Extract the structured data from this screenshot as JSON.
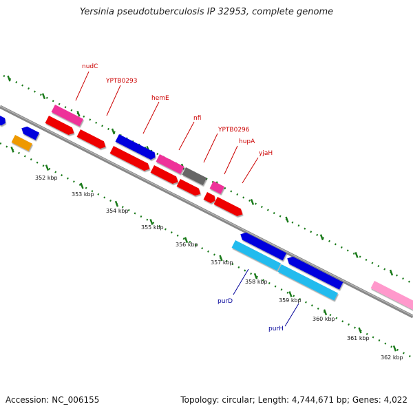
{
  "title": "Yersinia pseudotuberculosis IP 32953, complete genome",
  "footer": {
    "accession": "Accession: NC_006155",
    "summary": "Topology: circular; Length: 4,744,671 bp; Genes: 4,022"
  },
  "colors": {
    "backbone": "#8a8a8a",
    "tick": "#1a7a1a",
    "red": "#ee0000",
    "blue": "#0000dd",
    "magenta": "#ee3399",
    "gray": "#666666",
    "cyan": "#22bbee",
    "orange": "#ee9900",
    "pink": "#ff99cc",
    "label_red": "#cc0000",
    "label_blue": "#000099"
  },
  "kbp_labels": [
    {
      "text": "352 kbp"
    },
    {
      "text": "353 kbp"
    },
    {
      "text": "354 kbp"
    },
    {
      "text": "355 kbp"
    },
    {
      "text": "356 kbp"
    },
    {
      "text": "357 kbp"
    },
    {
      "text": "358 kbp"
    },
    {
      "text": "359 kbp"
    },
    {
      "text": "360 kbp"
    },
    {
      "text": "361 kbp"
    },
    {
      "text": "362 kbp"
    }
  ],
  "gene_labels_top": [
    "nudC",
    "YPTB0293",
    "hemE",
    "nfi",
    "YPTB0296",
    "hupA",
    "yjaH"
  ],
  "gene_labels_bottom": [
    "purD",
    "purH"
  ]
}
